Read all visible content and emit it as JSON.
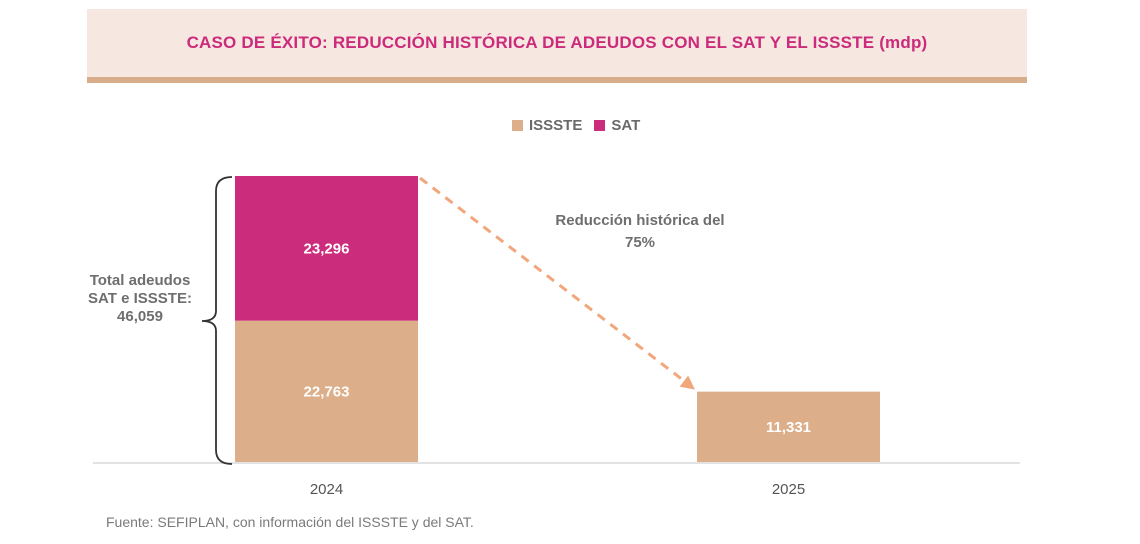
{
  "header": {
    "title": "CASO DE ÉXITO: REDUCCIÓN HISTÓRICA DE ADEUDOS CON EL SAT Y EL ISSSTE (mdp)"
  },
  "colors": {
    "issste": "#dcae89",
    "sat": "#cb2c7c",
    "title_text": "#cc2a7a",
    "title_band": "#f6e8e1",
    "arrow": "#f2a67c"
  },
  "legend": {
    "items": [
      {
        "label": "ISSSTE",
        "color": "#dcae89"
      },
      {
        "label": "SAT",
        "color": "#cb2c7c"
      }
    ]
  },
  "side_label": {
    "line1": "Total adeudos",
    "line2": "SAT e ISSSTE:",
    "line3": "46,059"
  },
  "annotation": {
    "line1": "Reducción histórica del",
    "line2": "75%"
  },
  "source": "Fuente: SEFIPLAN, con información del ISSSTE y del SAT.",
  "chart_data": {
    "type": "bar",
    "stacked": true,
    "categories": [
      "2024",
      "2025"
    ],
    "series": [
      {
        "name": "ISSSTE",
        "values": [
          22763,
          11331
        ],
        "labels": [
          "22,763",
          "11,331"
        ]
      },
      {
        "name": "SAT",
        "values": [
          23296,
          0
        ],
        "labels": [
          "23,296",
          ""
        ]
      }
    ],
    "legend_position": "top-center",
    "grid": false
  }
}
